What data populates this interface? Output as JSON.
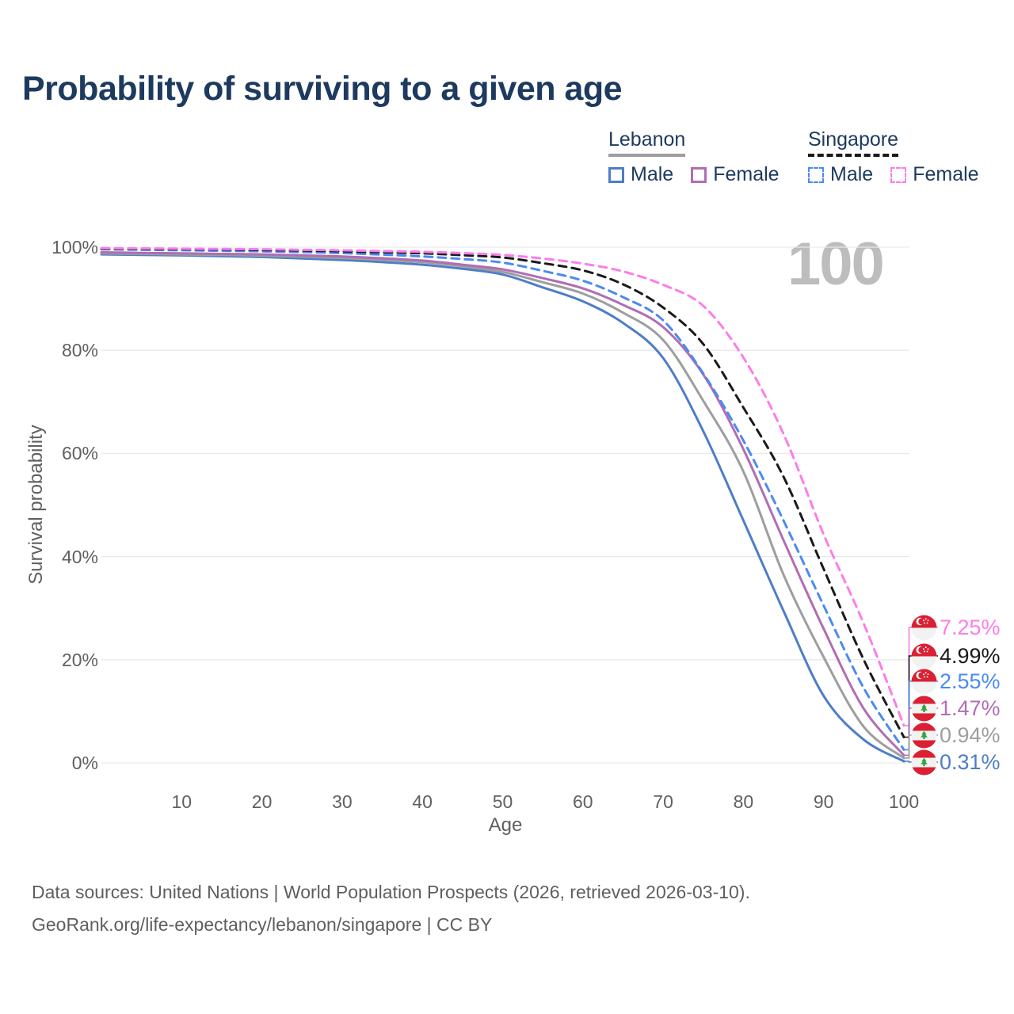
{
  "title": "Probability of surviving to a given age",
  "watermark_age": "100",
  "legend": {
    "groups": [
      {
        "label": "Lebanon",
        "line_style": "solid",
        "line_color": "#9e9e9e",
        "items": [
          {
            "label": "Male",
            "color": "#4e7dc8"
          },
          {
            "label": "Female",
            "color": "#b16db3"
          }
        ]
      },
      {
        "label": "Singapore",
        "line_style": "dashed",
        "line_color": "#1a1a1a",
        "items": [
          {
            "label": "Male",
            "color": "#4a8af4"
          },
          {
            "label": "Female",
            "color": "#fc7de9"
          }
        ]
      }
    ]
  },
  "axes": {
    "y_ticks": [
      {
        "label": "100%",
        "value": 100
      },
      {
        "label": "80%",
        "value": 80
      },
      {
        "label": "60%",
        "value": 60
      },
      {
        "label": "40%",
        "value": 40
      },
      {
        "label": "20%",
        "value": 20
      },
      {
        "label": "0%",
        "value": 0
      }
    ],
    "x_ticks": [
      {
        "label": "10",
        "value": 10
      },
      {
        "label": "20",
        "value": 20
      },
      {
        "label": "30",
        "value": 30
      },
      {
        "label": "40",
        "value": 40
      },
      {
        "label": "50",
        "value": 50
      },
      {
        "label": "60",
        "value": 60
      },
      {
        "label": "70",
        "value": 70
      },
      {
        "label": "80",
        "value": 80
      },
      {
        "label": "90",
        "value": 90
      },
      {
        "label": "100",
        "value": 100
      }
    ]
  },
  "chart_data": {
    "type": "line",
    "title": "Probability of surviving to a given age",
    "xlabel": "Age",
    "ylabel": "Survival probability",
    "x_range": [
      0,
      100
    ],
    "y_range_percent": [
      0,
      100
    ],
    "grid": "horizontal-only",
    "ages": [
      0,
      5,
      10,
      15,
      20,
      25,
      30,
      35,
      40,
      45,
      50,
      55,
      60,
      65,
      70,
      75,
      80,
      85,
      90,
      95,
      100
    ],
    "series": [
      {
        "id": "lebanon-male",
        "name": "Lebanon Male",
        "country": "Lebanon",
        "sex": "Male",
        "line": "solid",
        "color": "#4e7dc8",
        "end_label": "0.31%",
        "values": [
          98.6,
          98.5,
          98.4,
          98.25,
          98.1,
          97.8,
          97.5,
          97.1,
          96.6,
          95.8,
          94.7,
          92.2,
          89.5,
          85.3,
          78.5,
          64.3,
          47.0,
          29.5,
          13.0,
          4.5,
          0.31
        ]
      },
      {
        "id": "lebanon-all",
        "name": "Lebanon",
        "country": "Lebanon",
        "sex": "Both",
        "line": "solid",
        "color": "#9e9e9e",
        "end_label": "0.94%",
        "values": [
          98.8,
          98.7,
          98.6,
          98.5,
          98.35,
          98.15,
          97.9,
          97.55,
          97.1,
          96.3,
          95.2,
          93.2,
          91.0,
          87.3,
          82.0,
          70.2,
          56.5,
          36.5,
          20.5,
          7.0,
          0.94
        ]
      },
      {
        "id": "lebanon-female",
        "name": "Lebanon Female",
        "country": "Lebanon",
        "sex": "Female",
        "line": "solid",
        "color": "#b16db3",
        "end_label": "1.47%",
        "values": [
          99.0,
          98.9,
          98.8,
          98.7,
          98.6,
          98.4,
          98.2,
          97.85,
          97.4,
          96.6,
          95.7,
          94.0,
          92.0,
          88.8,
          84.5,
          75.3,
          60.8,
          43.2,
          26.0,
          10.5,
          1.47
        ]
      },
      {
        "id": "singapore-male",
        "name": "Singapore Male",
        "country": "Singapore",
        "sex": "Male",
        "line": "dashed",
        "color": "#4a8af4",
        "end_label": "2.55%",
        "values": [
          99.6,
          99.5,
          99.4,
          99.3,
          99.2,
          99.05,
          98.85,
          98.55,
          98.2,
          97.7,
          97.0,
          95.4,
          93.5,
          90.3,
          85.8,
          75.5,
          62.5,
          47.0,
          30.5,
          14.5,
          2.55
        ]
      },
      {
        "id": "singapore-all",
        "name": "Singapore",
        "country": "Singapore",
        "sex": "Both",
        "line": "dashed",
        "color": "#1a1a1a",
        "end_label": "4.99%",
        "values": [
          99.7,
          99.65,
          99.6,
          99.55,
          99.45,
          99.35,
          99.2,
          99.0,
          98.8,
          98.45,
          98.0,
          96.9,
          95.5,
          92.8,
          88.3,
          81.2,
          68.9,
          55.5,
          37.6,
          20.0,
          4.99
        ]
      },
      {
        "id": "singapore-female",
        "name": "Singapore Female",
        "country": "Singapore",
        "sex": "Female",
        "line": "dashed",
        "color": "#fc7de9",
        "end_label": "7.25%",
        "values": [
          99.8,
          99.75,
          99.7,
          99.65,
          99.6,
          99.5,
          99.4,
          99.25,
          99.1,
          98.85,
          98.5,
          97.8,
          96.8,
          95.3,
          92.7,
          88.6,
          78.6,
          63.8,
          44.3,
          27.0,
          7.25
        ]
      }
    ]
  },
  "footer": {
    "line1": "Data sources: United Nations | World Population Prospects (2026, retrieved 2026-03-10).",
    "line2": "GeoRank.org/life-expectancy/lebanon/singapore | CC BY"
  }
}
